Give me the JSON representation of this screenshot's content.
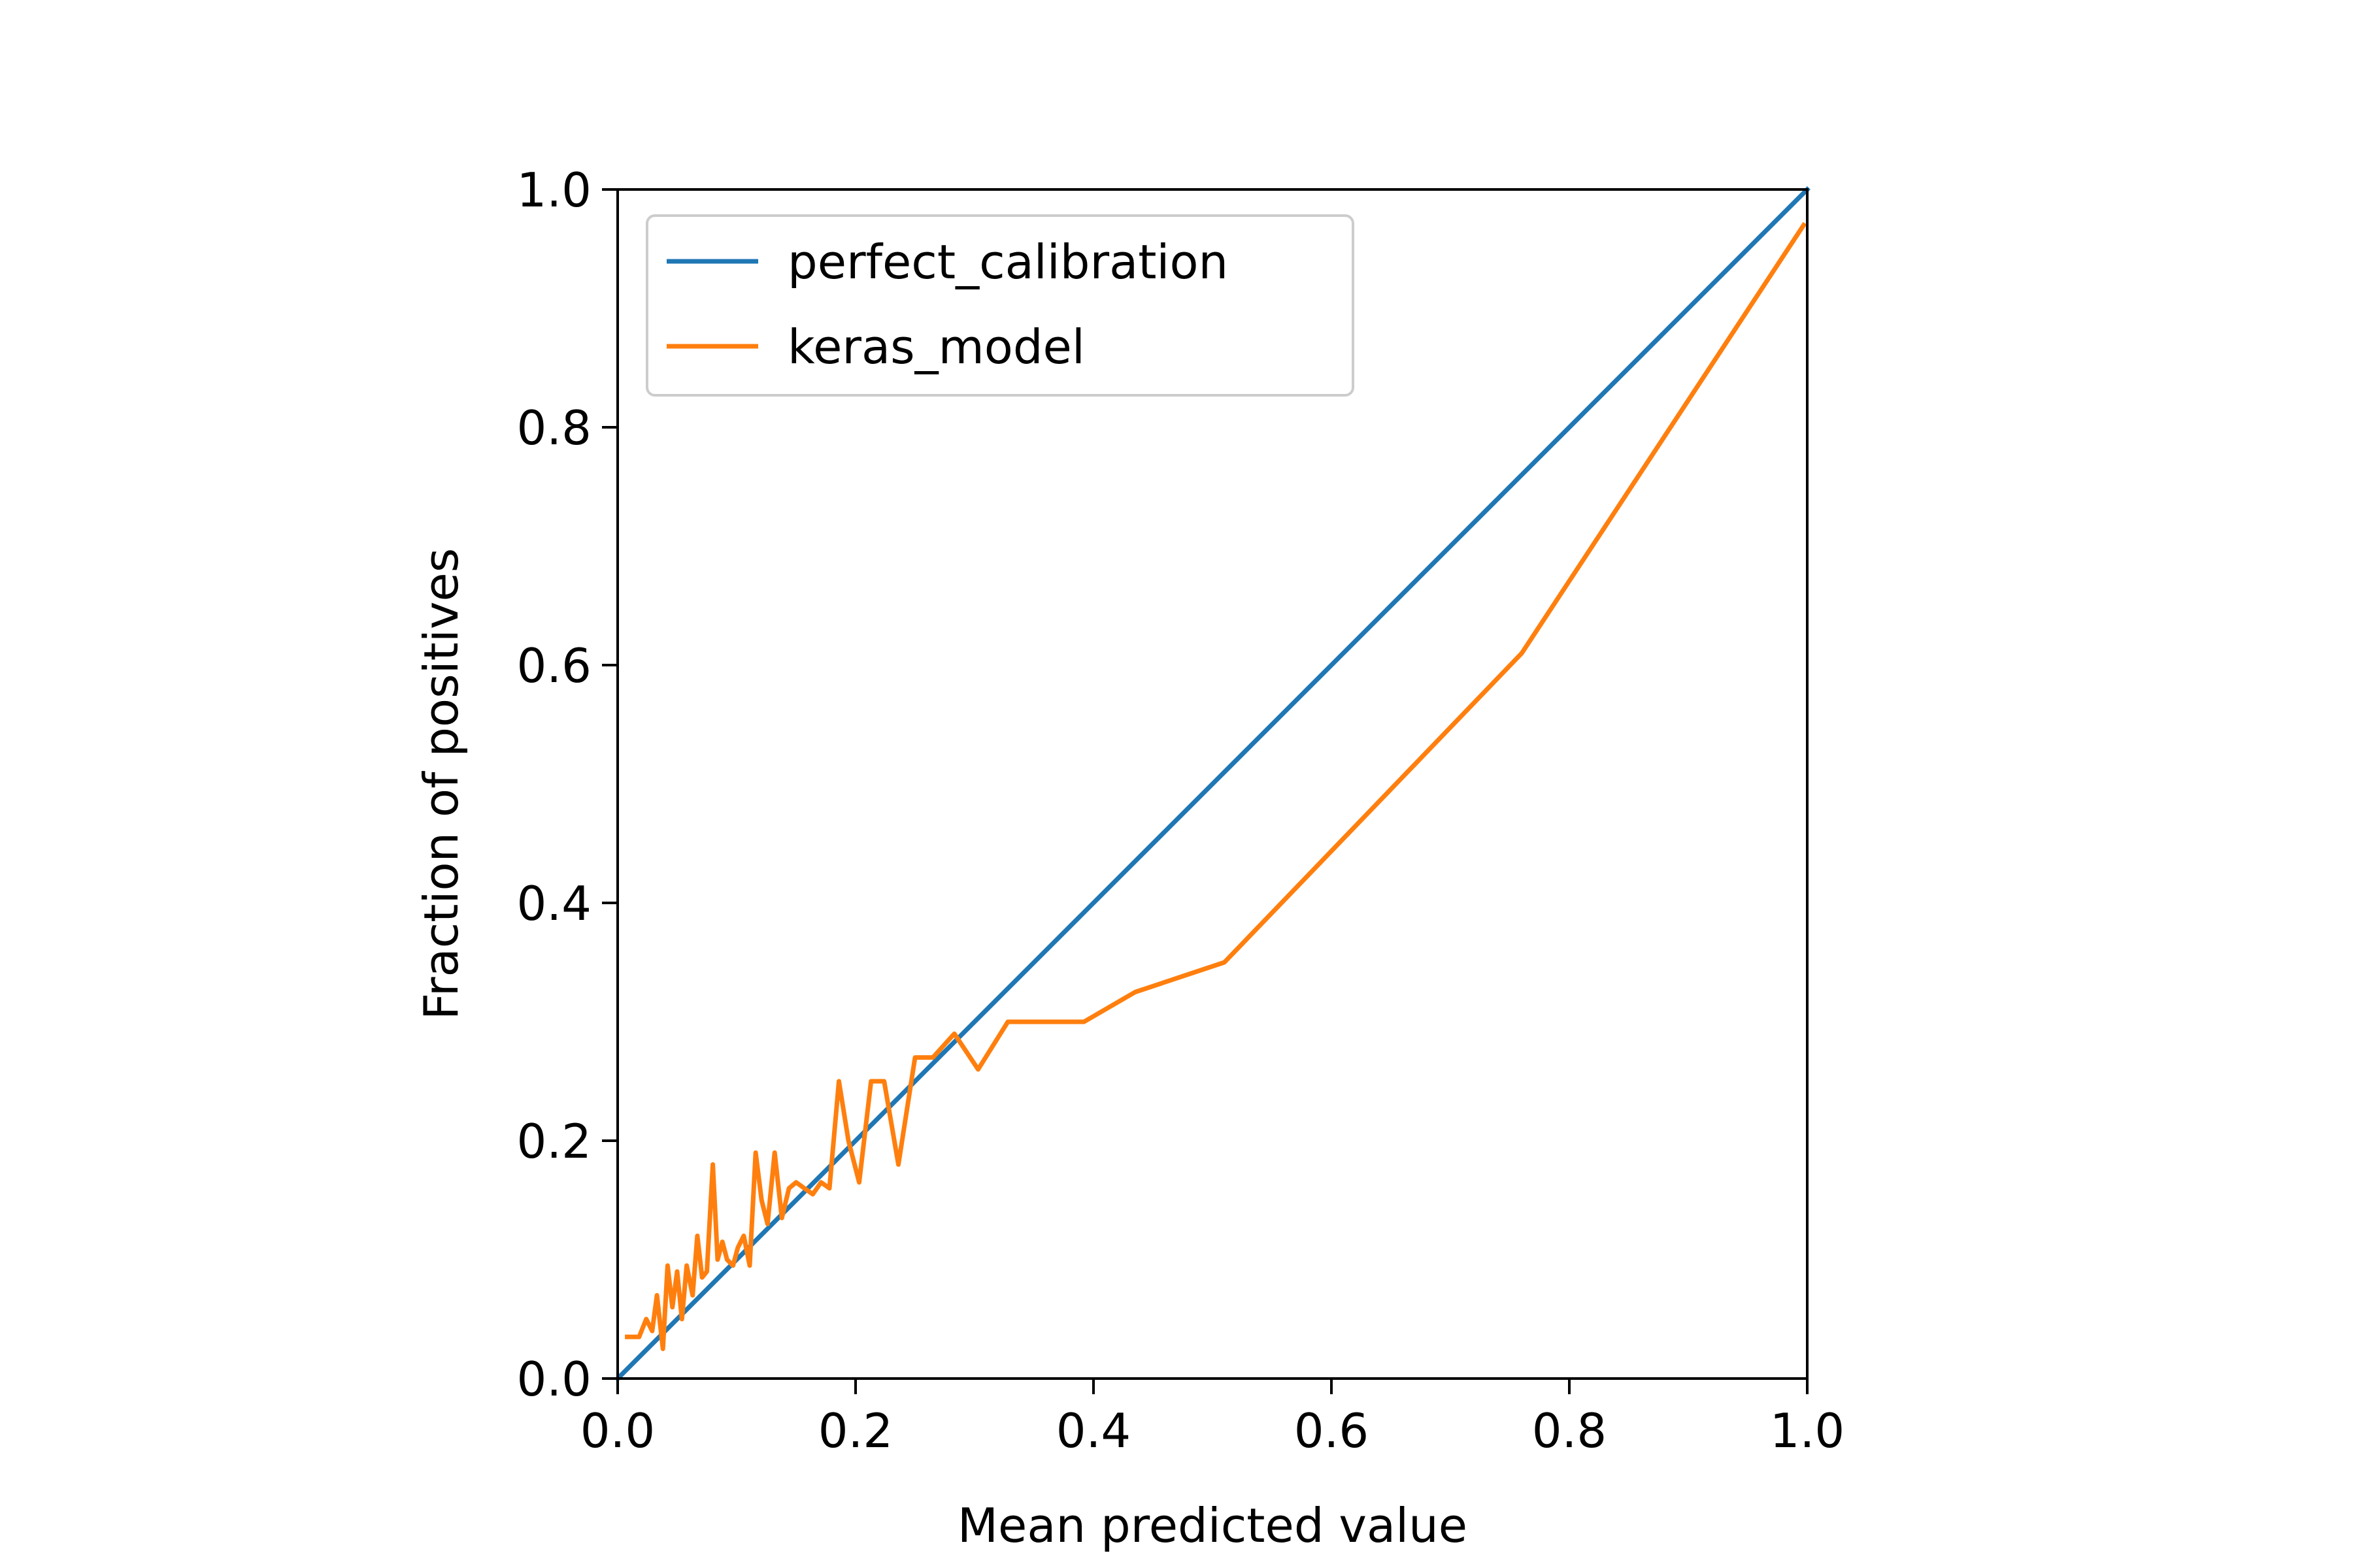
{
  "chart_data": {
    "type": "line",
    "title": "",
    "xlabel": "Mean predicted value",
    "ylabel": "Fraction of positives",
    "xlim": [
      0.0,
      1.0
    ],
    "ylim": [
      0.0,
      1.0
    ],
    "xticks": [
      "0.0",
      "0.2",
      "0.4",
      "0.6",
      "0.8",
      "1.0"
    ],
    "yticks": [
      "0.0",
      "0.2",
      "0.4",
      "0.6",
      "0.8",
      "1.0"
    ],
    "grid": false,
    "legend_position": "upper-left",
    "series": [
      {
        "name": "perfect_calibration",
        "color": "#1f77b4",
        "x": [
          0.0,
          1.0
        ],
        "y": [
          0.0,
          1.0
        ]
      },
      {
        "name": "keras_model",
        "color": "#ff7f0e",
        "x": [
          0.008,
          0.018,
          0.024,
          0.029,
          0.033,
          0.038,
          0.042,
          0.046,
          0.05,
          0.054,
          0.058,
          0.063,
          0.067,
          0.071,
          0.075,
          0.08,
          0.084,
          0.088,
          0.092,
          0.097,
          0.101,
          0.106,
          0.111,
          0.116,
          0.121,
          0.126,
          0.132,
          0.138,
          0.144,
          0.15,
          0.157,
          0.164,
          0.171,
          0.178,
          0.186,
          0.194,
          0.203,
          0.213,
          0.224,
          0.236,
          0.25,
          0.265,
          0.283,
          0.303,
          0.328,
          0.357,
          0.392,
          0.435,
          0.51,
          0.76,
          0.997
        ],
        "y": [
          0.035,
          0.035,
          0.05,
          0.04,
          0.07,
          0.025,
          0.095,
          0.06,
          0.09,
          0.05,
          0.095,
          0.07,
          0.12,
          0.085,
          0.09,
          0.18,
          0.1,
          0.115,
          0.1,
          0.095,
          0.11,
          0.12,
          0.095,
          0.19,
          0.15,
          0.13,
          0.19,
          0.135,
          0.16,
          0.165,
          0.16,
          0.155,
          0.165,
          0.16,
          0.25,
          0.2,
          0.165,
          0.25,
          0.25,
          0.18,
          0.27,
          0.27,
          0.29,
          0.26,
          0.3,
          0.3,
          0.3,
          0.325,
          0.35,
          0.61,
          0.97
        ]
      }
    ]
  }
}
